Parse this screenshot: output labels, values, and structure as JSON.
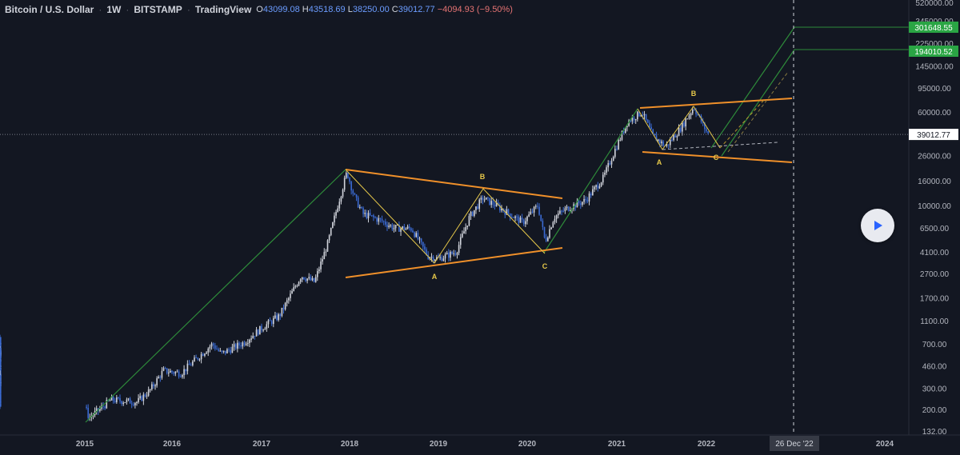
{
  "header": {
    "symbol": "Bitcoin / U.S. Dollar",
    "interval": "1W",
    "exchange": "BITSTAMP",
    "source": "TradingView",
    "open_label": "O",
    "open": "43099.08",
    "high_label": "H",
    "high": "43518.69",
    "low_label": "L",
    "low": "38250.00",
    "close_label": "C",
    "close": "39012.77",
    "change": "−4094.93 (−9.50%)"
  },
  "colors": {
    "background": "#131722",
    "candle_up": "#d1d4dc",
    "candle_down": "#3b6bd4",
    "triangle": "#f0902a",
    "wave": "#e6c84a",
    "trend_green": "#2e8b3a",
    "label_green": "#2aa544",
    "current_price_line": "#787b86"
  },
  "price_axis": {
    "ticks": [
      "520000.00",
      "345000.00",
      "225000.00",
      "145000.00",
      "95000.00",
      "60000.00",
      "26000.00",
      "16000.00",
      "10000.00",
      "6500.00",
      "4100.00",
      "2700.00",
      "1700.00",
      "1100.00",
      "700.00",
      "460.00",
      "300.00",
      "200.00",
      "132.00"
    ],
    "current_price": "39012.77",
    "target_labels": [
      "301648.55",
      "194010.52"
    ]
  },
  "time_axis": {
    "ticks": [
      "2015",
      "2016",
      "2017",
      "2018",
      "2019",
      "2020",
      "2021",
      "2022",
      "2024"
    ],
    "cursor_label": "26 Dec '22"
  },
  "wave_labels": {
    "left": [
      "A",
      "B",
      "C"
    ],
    "right": [
      "A",
      "B",
      "C"
    ]
  },
  "play_button": {
    "icon": "play-icon"
  }
}
